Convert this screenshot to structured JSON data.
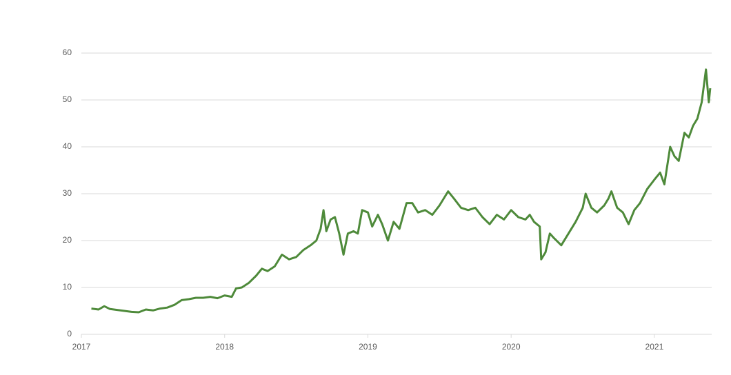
{
  "chart_data": {
    "type": "line",
    "x": [
      2017.07,
      2017.12,
      2017.16,
      2017.2,
      2017.25,
      2017.3,
      2017.35,
      2017.4,
      2017.45,
      2017.5,
      2017.55,
      2017.6,
      2017.65,
      2017.7,
      2017.75,
      2017.8,
      2017.85,
      2017.9,
      2017.95,
      2018.0,
      2018.05,
      2018.08,
      2018.12,
      2018.17,
      2018.22,
      2018.26,
      2018.3,
      2018.35,
      2018.4,
      2018.45,
      2018.5,
      2018.55,
      2018.6,
      2018.64,
      2018.67,
      2018.69,
      2018.71,
      2018.74,
      2018.77,
      2018.8,
      2018.83,
      2018.86,
      2018.9,
      2018.93,
      2018.96,
      2019.0,
      2019.03,
      2019.07,
      2019.1,
      2019.14,
      2019.18,
      2019.22,
      2019.27,
      2019.31,
      2019.35,
      2019.4,
      2019.45,
      2019.5,
      2019.56,
      2019.6,
      2019.65,
      2019.7,
      2019.75,
      2019.8,
      2019.85,
      2019.9,
      2019.95,
      2020.0,
      2020.05,
      2020.1,
      2020.13,
      2020.16,
      2020.2,
      2020.21,
      2020.24,
      2020.27,
      2020.3,
      2020.35,
      2020.4,
      2020.45,
      2020.5,
      2020.52,
      2020.56,
      2020.6,
      2020.65,
      2020.68,
      2020.7,
      2020.74,
      2020.78,
      2020.82,
      2020.86,
      2020.9,
      2020.95,
      2021.0,
      2021.04,
      2021.07,
      2021.11,
      2021.14,
      2021.17,
      2021.21,
      2021.24,
      2021.27,
      2021.3,
      2021.33,
      2021.36,
      2021.38,
      2021.39
    ],
    "series": [
      {
        "color": "#4e8a3a",
        "values": [
          5.5,
          5.3,
          6.0,
          5.4,
          5.2,
          5.0,
          4.8,
          4.7,
          5.3,
          5.1,
          5.5,
          5.7,
          6.3,
          7.3,
          7.5,
          7.8,
          7.8,
          8.0,
          7.7,
          8.3,
          8.0,
          9.8,
          10.0,
          11.0,
          12.5,
          14.0,
          13.5,
          14.5,
          17.0,
          16.0,
          16.5,
          18.0,
          19.0,
          20.0,
          22.5,
          26.5,
          22.0,
          24.5,
          25.0,
          21.5,
          17.0,
          21.5,
          22.0,
          21.5,
          26.5,
          26.0,
          23.0,
          25.5,
          23.5,
          20.0,
          24.0,
          22.5,
          28.0,
          28.0,
          26.0,
          26.5,
          25.5,
          27.5,
          30.5,
          29.0,
          27.0,
          26.5,
          27.0,
          25.0,
          23.5,
          25.5,
          24.5,
          26.5,
          25.0,
          24.5,
          25.5,
          24.0,
          23.0,
          16.0,
          17.5,
          21.5,
          20.5,
          19.0,
          21.5,
          24.0,
          27.0,
          30.0,
          27.0,
          26.0,
          27.5,
          29.0,
          30.5,
          27.0,
          26.0,
          23.5,
          26.5,
          28.0,
          31.0,
          33.0,
          34.5,
          32.0,
          40.0,
          38.0,
          37.0,
          43.0,
          42.0,
          44.5,
          46.0,
          49.5,
          56.5,
          49.5,
          52.5
        ]
      }
    ],
    "xlim": [
      2017,
      2021.4
    ],
    "xticks": [
      2017,
      2018,
      2019,
      2020,
      2021
    ],
    "ylim": [
      0,
      60
    ],
    "yticks": [
      0,
      10,
      20,
      30,
      40,
      50,
      60
    ],
    "grid": true
  }
}
